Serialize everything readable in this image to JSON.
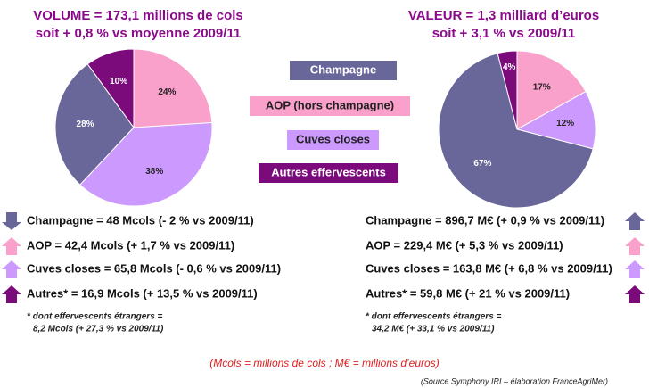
{
  "chart_data": [
    {
      "type": "pie",
      "title": "VOLUME = 173,1 millions de cols",
      "subtitle": "soit + 0,8 % vs moyenne 2009/11",
      "categories": [
        "AOP (hors champagne)",
        "Cuves closes",
        "Champagne",
        "Autres effervescents"
      ],
      "values": [
        24,
        38,
        28,
        10
      ],
      "value_labels": [
        "24%",
        "38%",
        "28%",
        "10%"
      ],
      "colors": [
        "#f9a0cb",
        "#cc99ff",
        "#69679a",
        "#7b0a7b"
      ]
    },
    {
      "type": "pie",
      "title": "VALEUR = 1,3 milliard d’euros",
      "subtitle": "soit + 3,1 % vs 2009/11",
      "values": [
        17,
        12,
        67,
        4
      ],
      "value_labels": [
        "17%",
        "12%",
        "67%",
        "4%"
      ],
      "colors": [
        "#f9a0cb",
        "#cc99ff",
        "#69679a",
        "#7b0a7b"
      ]
    }
  ],
  "details": {
    "left": [
      "Champagne = 48 Mcols (- 2 % vs 2009/11)",
      "AOP = 42,4 Mcols (+ 1,7 % vs 2009/11)",
      "Cuves closes = 65,8 Mcols (- 0,6 % vs 2009/11)",
      "Autres* = 16,9 Mcols (+ 13,5 % vs 2009/11)"
    ],
    "left_note": [
      "* dont effervescents étrangers =",
      "8,2 Mcols (+ 27,3 % vs 2009/11)"
    ],
    "right": [
      "Champagne = 896,7 M€ (+ 0,9 % vs 2009/11)",
      "AOP = 229,4 M€ (+ 5,3 % vs 2009/11)",
      "Cuves closes = 163,8 M€ (+ 6,8 % vs 2009/11)",
      "Autres* = 59,8 M€ (+ 21 % vs 2009/11)"
    ],
    "right_note": [
      "* dont effervescents étrangers =",
      "34,2 M€ (+ 33,1 % vs 2009/11)"
    ]
  },
  "footnote": "(Mcols = millions de cols ; M€ = millions d’euros)",
  "source": "(Source Symphony IRI – élaboration FranceAgriMer)"
}
